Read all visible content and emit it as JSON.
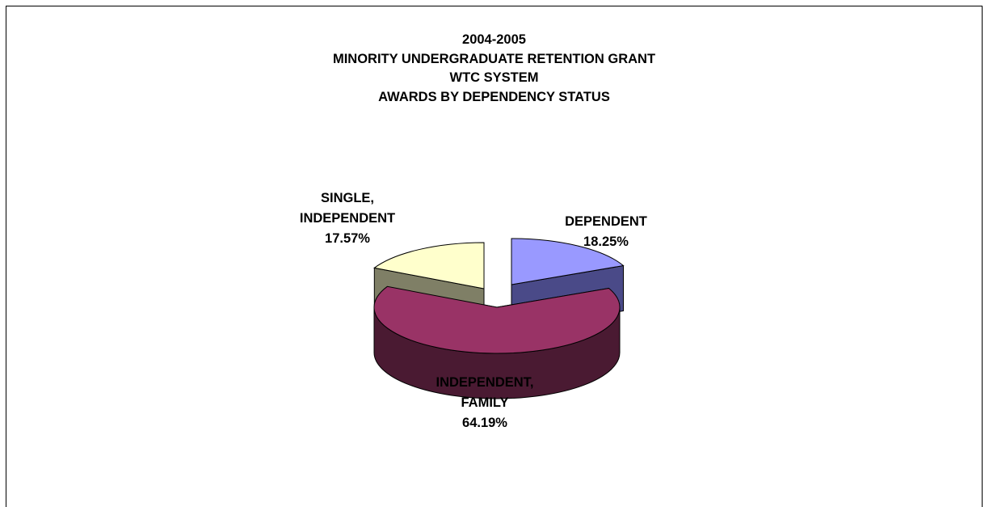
{
  "chart_data": {
    "type": "pie",
    "title_lines": [
      "2004-2005",
      "MINORITY UNDERGRADUATE RETENTION GRANT",
      "WTC SYSTEM",
      "AWARDS BY DEPENDENCY STATUS"
    ],
    "slices": [
      {
        "label_lines": [
          "DEPENDENT"
        ],
        "value": 18.25,
        "value_label": "18.25%",
        "color": "#9999ff",
        "side_color": "#4a4a88"
      },
      {
        "label_lines": [
          "INDEPENDENT,",
          "FAMILY"
        ],
        "value": 64.19,
        "value_label": "64.19%",
        "color": "#993366",
        "side_color": "#4a1a32"
      },
      {
        "label_lines": [
          "SINGLE,",
          "INDEPENDENT"
        ],
        "value": 17.57,
        "value_label": "17.57%",
        "color": "#ffffcc",
        "side_color": "#7f7f66"
      }
    ],
    "style": "3d-exploded"
  }
}
